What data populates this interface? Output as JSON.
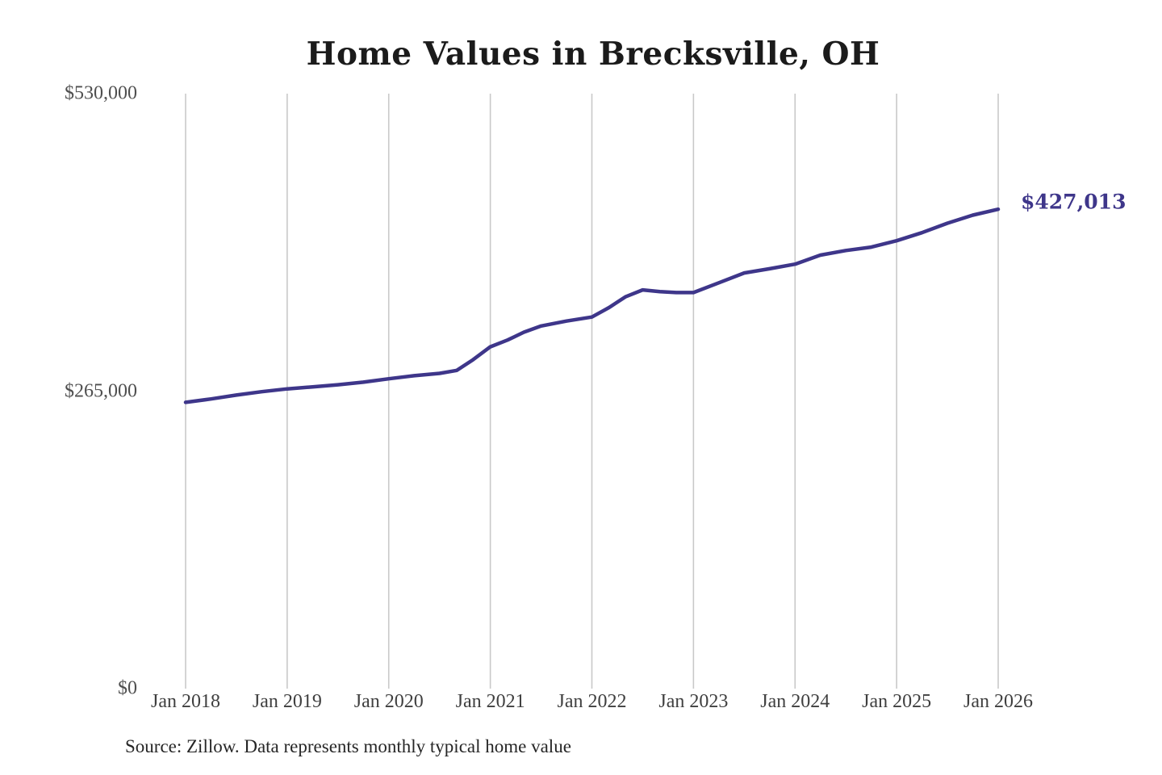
{
  "chart_data": {
    "type": "line",
    "title": "Home Values in Brecksville, OH",
    "source": "Source: Zillow. Data represents monthly typical home value",
    "end_label": "$427,013",
    "end_value": 427013,
    "x_ticks": [
      "Jan 2018",
      "Jan 2019",
      "Jan 2020",
      "Jan 2021",
      "Jan 2022",
      "Jan 2023",
      "Jan 2024",
      "Jan 2025",
      "Jan 2026"
    ],
    "y_ticks": [
      {
        "label": "$0",
        "value": 0
      },
      {
        "label": "$265,000",
        "value": 265000
      },
      {
        "label": "$530,000",
        "value": 530000
      }
    ],
    "xlim": [
      2018.0,
      2026.0
    ],
    "ylim": [
      0,
      530000
    ],
    "grid": "vertical-only",
    "legend": "none",
    "series": [
      {
        "name": "Monthly typical home value",
        "points": [
          [
            2018.0,
            255000
          ],
          [
            2018.25,
            258000
          ],
          [
            2018.5,
            261500
          ],
          [
            2018.75,
            264500
          ],
          [
            2019.0,
            267000
          ],
          [
            2019.25,
            268800
          ],
          [
            2019.5,
            270700
          ],
          [
            2019.75,
            273000
          ],
          [
            2020.0,
            276000
          ],
          [
            2020.25,
            278700
          ],
          [
            2020.5,
            280800
          ],
          [
            2020.67,
            283500
          ],
          [
            2020.83,
            293000
          ],
          [
            2021.0,
            304500
          ],
          [
            2021.17,
            310500
          ],
          [
            2021.33,
            317500
          ],
          [
            2021.5,
            323000
          ],
          [
            2021.75,
            327400
          ],
          [
            2022.0,
            331000
          ],
          [
            2022.17,
            339500
          ],
          [
            2022.33,
            349000
          ],
          [
            2022.5,
            355200
          ],
          [
            2022.67,
            353600
          ],
          [
            2022.83,
            352800
          ],
          [
            2023.0,
            352800
          ],
          [
            2023.25,
            361500
          ],
          [
            2023.5,
            370300
          ],
          [
            2023.75,
            374000
          ],
          [
            2024.0,
            378100
          ],
          [
            2024.25,
            386200
          ],
          [
            2024.5,
            390300
          ],
          [
            2024.75,
            393300
          ],
          [
            2025.0,
            399000
          ],
          [
            2025.25,
            406200
          ],
          [
            2025.5,
            414600
          ],
          [
            2025.75,
            421800
          ],
          [
            2026.0,
            427013
          ]
        ]
      }
    ],
    "colors": {
      "line": "#3e368a",
      "end_label": "#3e368a",
      "gridline": "#c9c9c9",
      "title_text": "#1b1b1b",
      "tick_text": "#4f4f4f",
      "source_text": "#262626",
      "background": "#ffffff"
    }
  }
}
